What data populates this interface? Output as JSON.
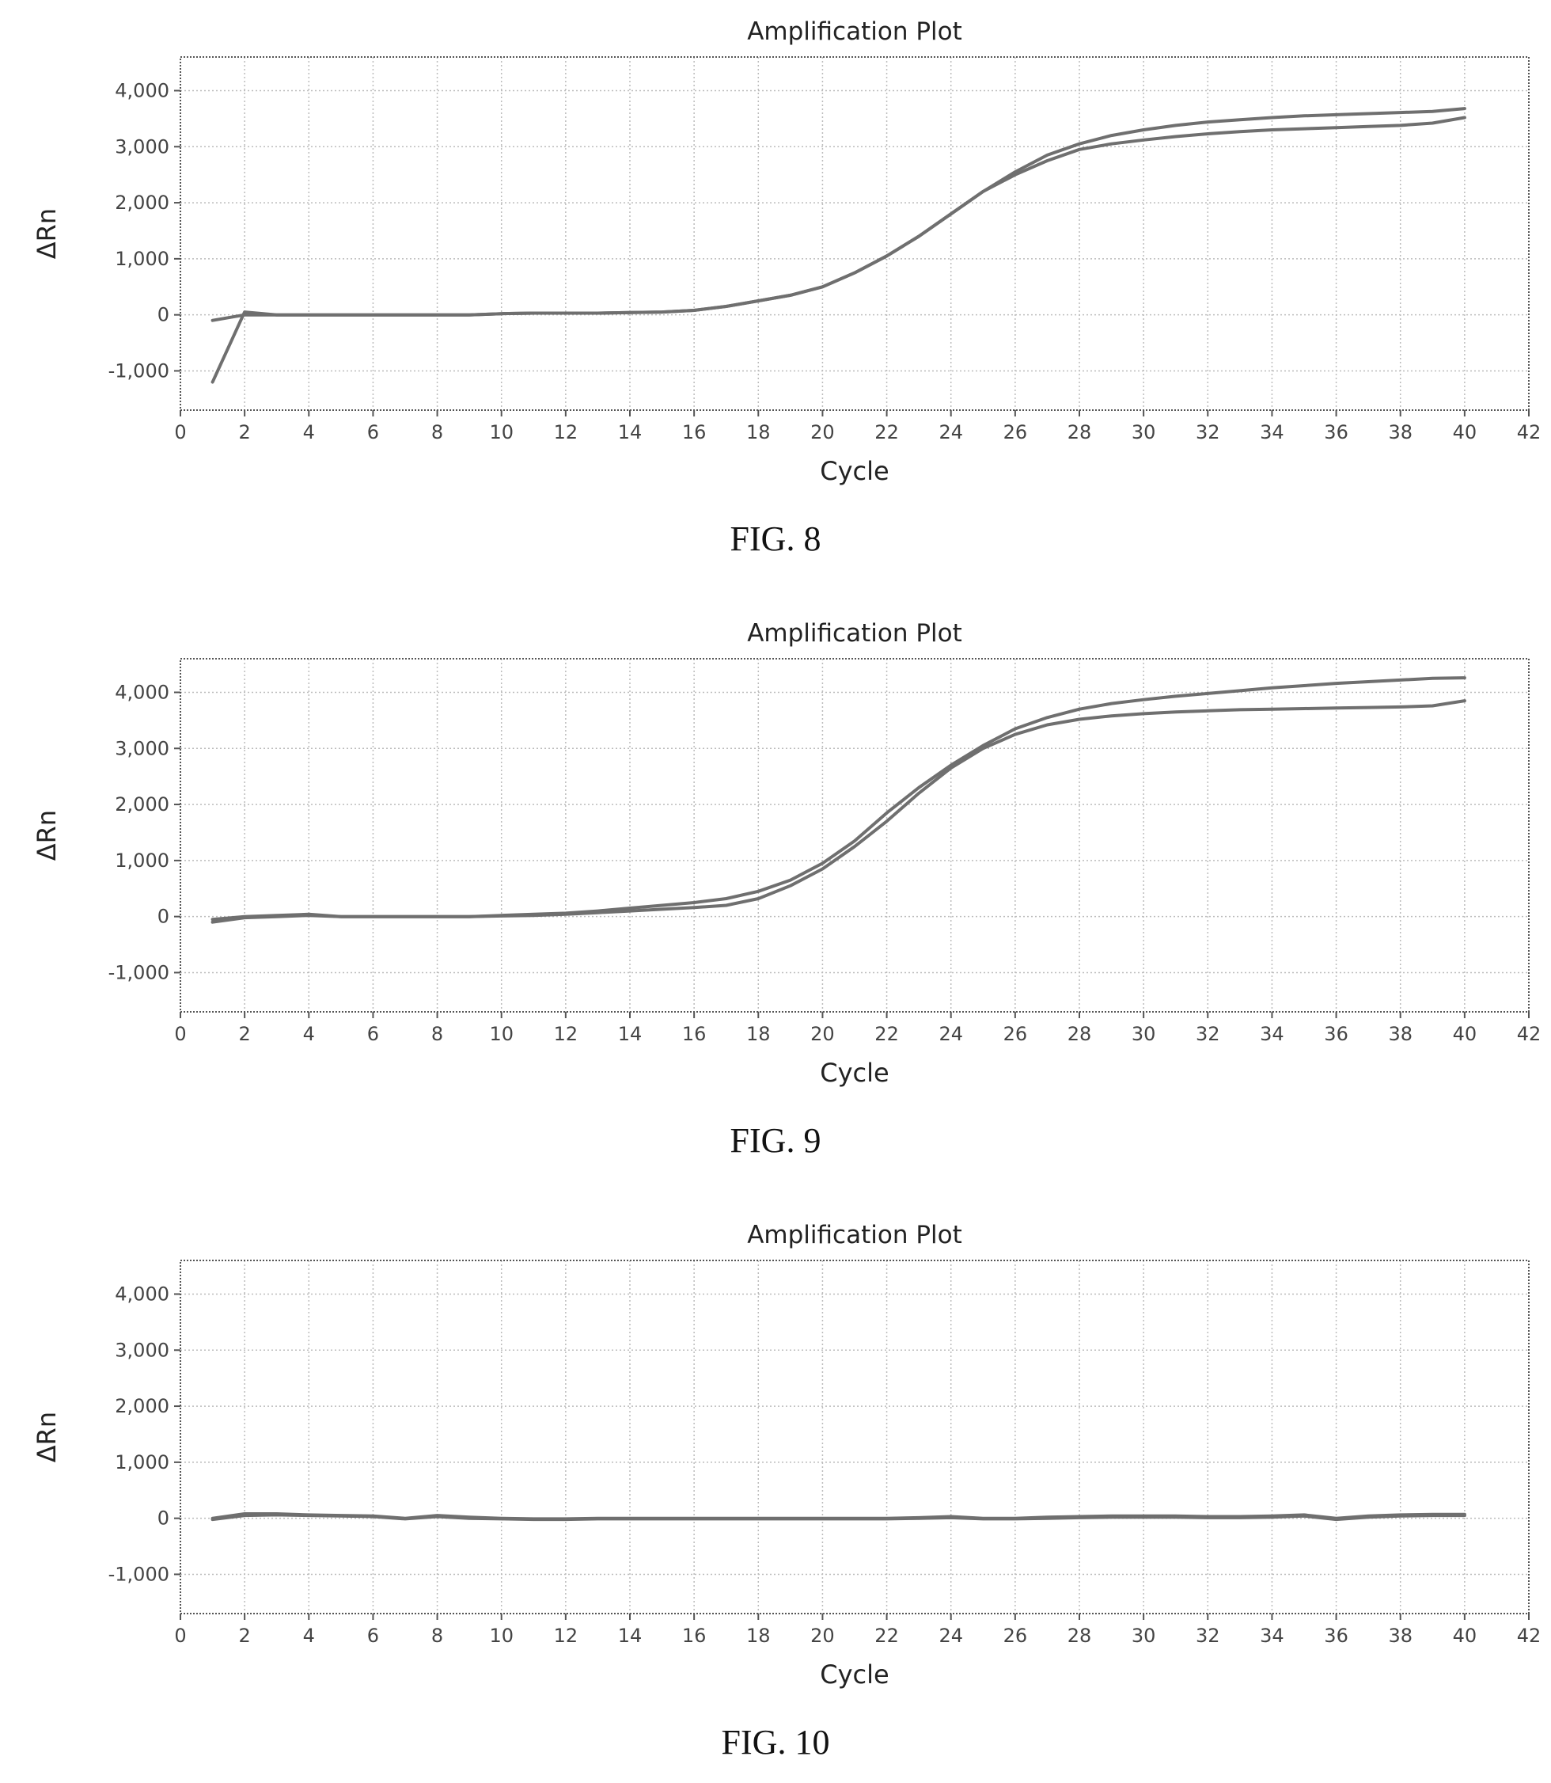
{
  "chart_data": [
    {
      "type": "line",
      "title": "Amplification Plot",
      "xlabel": "Cycle",
      "ylabel": "ΔRn",
      "xlim": [
        0,
        42
      ],
      "ylim": [
        -1700,
        4600
      ],
      "xticks": [
        "0",
        "2",
        "4",
        "6",
        "8",
        "10",
        "12",
        "14",
        "16",
        "18",
        "20",
        "22",
        "24",
        "26",
        "28",
        "30",
        "32",
        "34",
        "36",
        "38",
        "40",
        "42"
      ],
      "yticks": [
        {
          "value": 4000,
          "label": "4,000"
        },
        {
          "value": 3000,
          "label": "3,000"
        },
        {
          "value": 2000,
          "label": "2,000"
        },
        {
          "value": 1000,
          "label": "1,000"
        },
        {
          "value": 0,
          "label": "0"
        },
        {
          "value": -1000,
          "label": "-1,000"
        }
      ],
      "grid": true,
      "caption": "FIG. 8",
      "x": [
        1,
        2,
        3,
        4,
        5,
        6,
        7,
        8,
        9,
        10,
        11,
        12,
        13,
        14,
        15,
        16,
        17,
        18,
        19,
        20,
        21,
        22,
        23,
        24,
        25,
        26,
        27,
        28,
        29,
        30,
        31,
        32,
        33,
        34,
        35,
        36,
        37,
        38,
        39,
        40
      ],
      "series": [
        {
          "values": [
            -1200,
            50,
            0,
            0,
            0,
            0,
            0,
            0,
            0,
            20,
            30,
            30,
            30,
            40,
            50,
            80,
            150,
            250,
            350,
            500,
            750,
            1050,
            1400,
            1800,
            2200,
            2550,
            2850,
            3050,
            3200,
            3300,
            3380,
            3440,
            3480,
            3520,
            3550,
            3570,
            3590,
            3610,
            3630,
            3680
          ]
        },
        {
          "values": [
            -100,
            0,
            0,
            0,
            0,
            0,
            0,
            0,
            0,
            20,
            30,
            30,
            30,
            40,
            50,
            80,
            150,
            250,
            350,
            500,
            750,
            1050,
            1400,
            1800,
            2200,
            2500,
            2750,
            2950,
            3050,
            3120,
            3180,
            3230,
            3270,
            3300,
            3320,
            3340,
            3360,
            3380,
            3420,
            3520
          ]
        }
      ]
    },
    {
      "type": "line",
      "title": "Amplification Plot",
      "xlabel": "Cycle",
      "ylabel": "ΔRn",
      "xlim": [
        0,
        42
      ],
      "ylim": [
        -1700,
        4600
      ],
      "xticks": [
        "0",
        "2",
        "4",
        "6",
        "8",
        "10",
        "12",
        "14",
        "16",
        "18",
        "20",
        "22",
        "24",
        "26",
        "28",
        "30",
        "32",
        "34",
        "36",
        "38",
        "40",
        "42"
      ],
      "yticks": [
        {
          "value": 4000,
          "label": "4,000"
        },
        {
          "value": 3000,
          "label": "3,000"
        },
        {
          "value": 2000,
          "label": "2,000"
        },
        {
          "value": 1000,
          "label": "1,000"
        },
        {
          "value": 0,
          "label": "0"
        },
        {
          "value": -1000,
          "label": "-1,000"
        }
      ],
      "grid": true,
      "caption": "FIG. 9",
      "x": [
        1,
        2,
        3,
        4,
        5,
        6,
        7,
        8,
        9,
        10,
        11,
        12,
        13,
        14,
        15,
        16,
        17,
        18,
        19,
        20,
        21,
        22,
        23,
        24,
        25,
        26,
        27,
        28,
        29,
        30,
        31,
        32,
        33,
        34,
        35,
        36,
        37,
        38,
        39,
        40
      ],
      "series": [
        {
          "values": [
            -50,
            0,
            20,
            40,
            0,
            0,
            0,
            0,
            0,
            20,
            40,
            60,
            100,
            150,
            200,
            250,
            320,
            450,
            650,
            950,
            1350,
            1850,
            2300,
            2700,
            3050,
            3350,
            3550,
            3700,
            3800,
            3870,
            3930,
            3980,
            4030,
            4080,
            4120,
            4160,
            4190,
            4220,
            4250,
            4260
          ]
        },
        {
          "values": [
            -100,
            -20,
            0,
            20,
            0,
            0,
            0,
            0,
            0,
            10,
            20,
            40,
            70,
            100,
            130,
            160,
            200,
            320,
            550,
            850,
            1250,
            1700,
            2200,
            2650,
            3000,
            3250,
            3420,
            3520,
            3580,
            3620,
            3650,
            3670,
            3690,
            3700,
            3710,
            3720,
            3730,
            3740,
            3760,
            3850
          ]
        }
      ]
    },
    {
      "type": "line",
      "title": "Amplification Plot",
      "xlabel": "Cycle",
      "ylabel": "ΔRn",
      "xlim": [
        0,
        42
      ],
      "ylim": [
        -1700,
        4600
      ],
      "xticks": [
        "0",
        "2",
        "4",
        "6",
        "8",
        "10",
        "12",
        "14",
        "16",
        "18",
        "20",
        "22",
        "24",
        "26",
        "28",
        "30",
        "32",
        "34",
        "36",
        "38",
        "40",
        "42"
      ],
      "yticks": [
        {
          "value": 4000,
          "label": "4,000"
        },
        {
          "value": 3000,
          "label": "3,000"
        },
        {
          "value": 2000,
          "label": "2,000"
        },
        {
          "value": 1000,
          "label": "1,000"
        },
        {
          "value": 0,
          "label": "0"
        },
        {
          "value": -1000,
          "label": "-1,000"
        }
      ],
      "grid": true,
      "caption": "FIG. 10",
      "x": [
        1,
        2,
        3,
        4,
        5,
        6,
        7,
        8,
        9,
        10,
        11,
        12,
        13,
        14,
        15,
        16,
        17,
        18,
        19,
        20,
        21,
        22,
        23,
        24,
        25,
        26,
        27,
        28,
        29,
        30,
        31,
        32,
        33,
        34,
        35,
        36,
        37,
        38,
        39,
        40
      ],
      "series": [
        {
          "values": [
            0,
            80,
            80,
            60,
            50,
            40,
            0,
            50,
            20,
            0,
            -10,
            -10,
            0,
            0,
            0,
            0,
            0,
            0,
            0,
            0,
            0,
            0,
            10,
            30,
            0,
            0,
            20,
            30,
            40,
            40,
            40,
            30,
            30,
            40,
            60,
            0,
            40,
            60,
            70,
            70
          ]
        },
        {
          "values": [
            -20,
            50,
            60,
            50,
            40,
            30,
            -10,
            30,
            0,
            -10,
            -20,
            -20,
            -10,
            -10,
            -10,
            -10,
            -10,
            -10,
            -10,
            -10,
            -10,
            -10,
            0,
            10,
            -10,
            -10,
            0,
            10,
            20,
            20,
            20,
            10,
            10,
            20,
            40,
            -20,
            20,
            40,
            50,
            50
          ]
        }
      ]
    }
  ]
}
